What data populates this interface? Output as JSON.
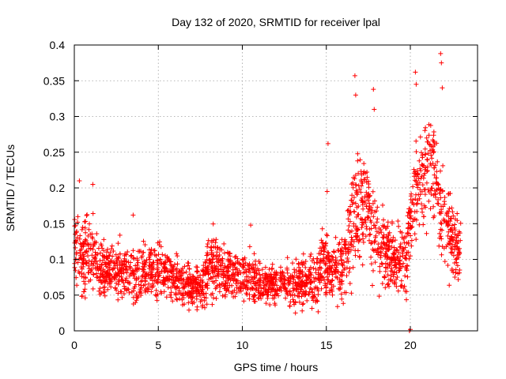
{
  "chart_data": {
    "type": "scatter",
    "title": "Day 132 of 2020, SRMTID for receiver lpal",
    "xlabel": "GPS time / hours",
    "ylabel": "SRMTID / TECUs",
    "xlim": [
      0,
      24
    ],
    "ylim": [
      0,
      0.4
    ],
    "xticks": [
      0,
      5,
      10,
      15,
      20
    ],
    "xtick_labels": [
      "0",
      "5",
      "10",
      "15",
      "20"
    ],
    "yticks": [
      0,
      0.05,
      0.1,
      0.15,
      0.2,
      0.25,
      0.3,
      0.35,
      0.4
    ],
    "ytick_labels": [
      "0",
      "0.05",
      "0.1",
      "0.15",
      "0.2",
      "0.25",
      "0.3",
      "0.35",
      "0.4"
    ],
    "grid": true,
    "marker": "+",
    "color": "#ff0000",
    "series": [
      {
        "name": "SRMTID",
        "profile": [
          {
            "hour": 0.0,
            "mean": 0.115,
            "spread": 0.035
          },
          {
            "hour": 0.4,
            "mean": 0.1,
            "spread": 0.04
          },
          {
            "hour": 1.0,
            "mean": 0.115,
            "spread": 0.05
          },
          {
            "hour": 1.5,
            "mean": 0.085,
            "spread": 0.035
          },
          {
            "hour": 2.5,
            "mean": 0.085,
            "spread": 0.03
          },
          {
            "hour": 3.5,
            "mean": 0.08,
            "spread": 0.035
          },
          {
            "hour": 5.0,
            "mean": 0.085,
            "spread": 0.035
          },
          {
            "hour": 6.5,
            "mean": 0.065,
            "spread": 0.025
          },
          {
            "hour": 7.5,
            "mean": 0.06,
            "spread": 0.025
          },
          {
            "hour": 8.2,
            "mean": 0.1,
            "spread": 0.04
          },
          {
            "hour": 9.0,
            "mean": 0.08,
            "spread": 0.03
          },
          {
            "hour": 10.0,
            "mean": 0.085,
            "spread": 0.03
          },
          {
            "hour": 11.0,
            "mean": 0.065,
            "spread": 0.025
          },
          {
            "hour": 12.5,
            "mean": 0.065,
            "spread": 0.025
          },
          {
            "hour": 14.0,
            "mean": 0.07,
            "spread": 0.03
          },
          {
            "hour": 15.0,
            "mean": 0.09,
            "spread": 0.04
          },
          {
            "hour": 16.0,
            "mean": 0.085,
            "spread": 0.04
          },
          {
            "hour": 16.8,
            "mean": 0.17,
            "spread": 0.07
          },
          {
            "hour": 17.5,
            "mean": 0.17,
            "spread": 0.06
          },
          {
            "hour": 18.0,
            "mean": 0.12,
            "spread": 0.05
          },
          {
            "hour": 19.0,
            "mean": 0.1,
            "spread": 0.04
          },
          {
            "hour": 19.8,
            "mean": 0.1,
            "spread": 0.04
          },
          {
            "hour": 20.2,
            "mean": 0.2,
            "spread": 0.06
          },
          {
            "hour": 20.8,
            "mean": 0.22,
            "spread": 0.07
          },
          {
            "hour": 21.5,
            "mean": 0.23,
            "spread": 0.07
          },
          {
            "hour": 22.0,
            "mean": 0.15,
            "spread": 0.06
          },
          {
            "hour": 22.7,
            "mean": 0.12,
            "spread": 0.04
          },
          {
            "hour": 23.0,
            "mean": 0.12,
            "spread": 0.04
          }
        ],
        "hour_range": [
          0.0,
          23.0
        ],
        "n_points": 2400,
        "spikes": [
          {
            "hour": 0.3,
            "value": 0.21
          },
          {
            "hour": 1.1,
            "value": 0.205
          },
          {
            "hour": 3.5,
            "value": 0.162
          },
          {
            "hour": 10.5,
            "value": 0.148
          },
          {
            "hour": 15.1,
            "value": 0.262
          },
          {
            "hour": 15.05,
            "value": 0.195
          },
          {
            "hour": 16.7,
            "value": 0.357
          },
          {
            "hour": 16.75,
            "value": 0.33
          },
          {
            "hour": 17.8,
            "value": 0.338
          },
          {
            "hour": 17.85,
            "value": 0.31
          },
          {
            "hour": 20.3,
            "value": 0.362
          },
          {
            "hour": 20.35,
            "value": 0.345
          },
          {
            "hour": 21.8,
            "value": 0.388
          },
          {
            "hour": 21.85,
            "value": 0.375
          },
          {
            "hour": 21.9,
            "value": 0.34
          }
        ],
        "zero_points": [
          {
            "hour": 19.95,
            "value": 0.0
          },
          {
            "hour": 20.0,
            "value": 0.002
          }
        ]
      }
    ]
  }
}
